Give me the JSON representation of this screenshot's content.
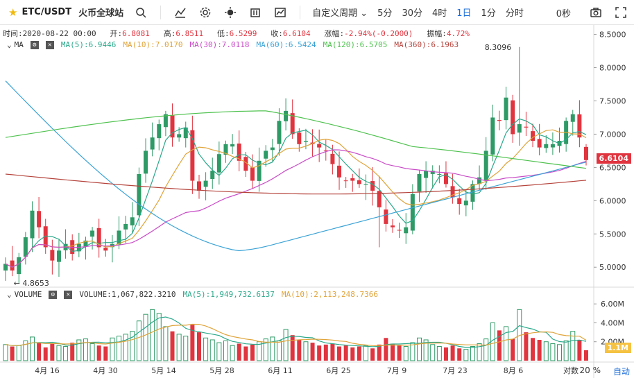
{
  "toolbar": {
    "symbol": "ETC/USDT",
    "exchange": "火币全球站",
    "custom_period": "自定义周期",
    "periods": [
      "5分",
      "30分",
      "4时",
      "1日",
      "1分",
      "分时"
    ],
    "active_period": "1日",
    "countdown": "0秒",
    "icons": [
      "star-icon",
      "search-icon",
      "indicator-icon",
      "gear-icon",
      "theme-icon",
      "candle-style-icon",
      "chart-type-icon",
      "chevron-down-icon",
      "camera-icon",
      "fullscreen-icon"
    ]
  },
  "info": {
    "time_label": "时间:",
    "time": "2020-08-22 00:00",
    "open_label": "开:",
    "open": "6.8081",
    "high_label": "高:",
    "high": "6.8511",
    "low_label": "低:",
    "low": "6.5299",
    "close_label": "收:",
    "close": "6.6104",
    "change_label": "涨幅:",
    "change": "-2.94%(-0.2000)",
    "amp_label": "振幅:",
    "amp": "4.72%"
  },
  "ma": {
    "label": "MA",
    "ma5": "MA(5):6.9446",
    "ma10": "MA(10):7.0170",
    "ma30": "MA(30):7.0118",
    "ma60": "MA(60):6.5424",
    "ma120": "MA(120):6.5705",
    "ma360": "MA(360):6.1963"
  },
  "volume": {
    "label": "VOLUME",
    "value": "VOLUME:1,067,822.3210",
    "ma5": "MA(5):1,949,732.6137",
    "ma10": "MA(10):2,113,248.7366"
  },
  "colors": {
    "up": "#e0343f",
    "down": "#2e9a66",
    "ma5": "#2aa88a",
    "ma10": "#e0a43a",
    "ma30": "#c94cc7",
    "ma60": "#3aa3d6",
    "ma120": "#4fc24f",
    "ma360": "#b5443c"
  },
  "price_axis": [
    "8.5000",
    "8.0000",
    "7.5000",
    "7.0000",
    "6.5000",
    "6.0000",
    "5.5000",
    "5.0000"
  ],
  "last_price": "6.6104",
  "min_label": "← 4.8653",
  "max_label": "8.3096",
  "vol_axis": [
    "6.00M",
    "4.00M",
    "2.00M"
  ],
  "last_vol": "1.1M",
  "x_axis": [
    "4月 16",
    "4月 30",
    "5月 14",
    "5月 28",
    "6月 11",
    "6月 25",
    "7月 9",
    "7月 23",
    "8月 6",
    "对数"
  ],
  "footer": {
    "pct": "20 %",
    "auto": "自动"
  },
  "chart_data": {
    "type": "candlestick",
    "title": "ETC/USDT 1日",
    "ylim": [
      4.7,
      8.6
    ],
    "series_close": [
      5.05,
      4.95,
      5.15,
      5.45,
      5.85,
      5.6,
      5.3,
      5.1,
      5.25,
      5.35,
      5.2,
      5.35,
      5.4,
      5.55,
      5.3,
      5.25,
      5.35,
      5.55,
      5.65,
      5.75,
      6.4,
      6.75,
      6.95,
      7.15,
      7.3,
      6.95,
      7.0,
      7.1,
      6.3,
      6.15,
      6.3,
      6.45,
      6.7,
      6.85,
      6.85,
      6.6,
      6.45,
      6.3,
      6.6,
      6.75,
      6.8,
      7.2,
      7.35,
      7.0,
      6.85,
      6.9,
      6.85,
      6.8,
      6.75,
      6.55,
      6.35,
      6.3,
      6.3,
      6.25,
      6.25,
      6.15,
      5.9,
      5.65,
      5.6,
      5.55,
      5.6,
      6.1,
      6.4,
      6.45,
      6.45,
      6.4,
      6.25,
      6.05,
      5.95,
      6.0,
      6.25,
      6.35,
      6.75,
      7.25,
      7.2,
      7.55,
      7.0,
      7.15,
      7.1,
      6.9,
      6.8,
      6.85,
      6.85,
      6.9,
      7.2,
      7.3,
      6.95,
      6.61
    ],
    "volume_millions": [
      1.7,
      1.5,
      1.6,
      2.1,
      2.5,
      1.9,
      1.4,
      1.8,
      1.6,
      1.5,
      1.9,
      2.2,
      2.3,
      1.8,
      1.6,
      1.5,
      2.4,
      2.6,
      2.8,
      3.1,
      4.2,
      4.9,
      5.4,
      5.0,
      3.6,
      3.1,
      2.8,
      2.6,
      3.8,
      3.0,
      2.4,
      2.2,
      1.9,
      2.1,
      1.6,
      1.8,
      1.5,
      1.7,
      2.0,
      2.3,
      2.5,
      2.1,
      3.3,
      2.7,
      2.2,
      2.0,
      1.9,
      1.6,
      1.7,
      1.8,
      1.5,
      1.6,
      1.4,
      1.5,
      1.6,
      1.3,
      1.7,
      2.4,
      1.8,
      1.6,
      1.5,
      1.9,
      2.4,
      2.2,
      1.7,
      1.5,
      1.4,
      1.6,
      1.3,
      1.2,
      1.5,
      1.8,
      2.3,
      4.0,
      3.2,
      3.6,
      2.3,
      5.4,
      3.0,
      2.4,
      2.2,
      2.0,
      1.8,
      1.7,
      2.1,
      3.1,
      2.2,
      1.1
    ]
  }
}
